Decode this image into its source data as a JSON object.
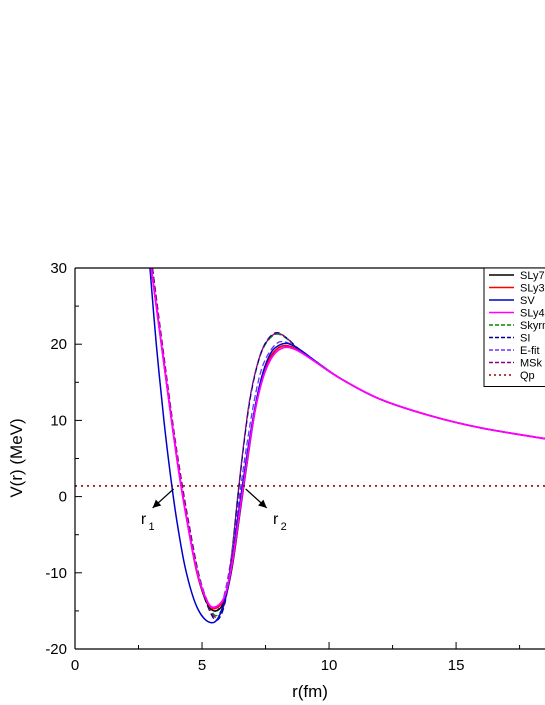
{
  "chart_data": {
    "type": "line",
    "title": "",
    "xlabel": "r(fm)",
    "ylabel": "V(r) (MeV)",
    "xlim": [
      0,
      18.5
    ],
    "ylim": [
      -20,
      30
    ],
    "x_ticks": [
      0,
      5,
      10,
      15
    ],
    "y_ticks": [
      -20,
      -10,
      0,
      10,
      20,
      30
    ],
    "grid": false,
    "legend_position": "top-right",
    "qp_level": 1.4,
    "annotations": [
      {
        "text": "r",
        "sub": "1",
        "tip": [
          4.0,
          1.4
        ],
        "label_at": [
          2.7,
          -3.6
        ]
      },
      {
        "text": "r",
        "sub": "2",
        "tip": [
          6.6,
          1.4
        ],
        "label_at": [
          7.9,
          -3.6
        ]
      }
    ],
    "series": [
      {
        "name": "SLy7",
        "color": "#000000",
        "dash": "solid",
        "width": 1.5,
        "points": [
          [
            3.0,
            30
          ],
          [
            3.4,
            20
          ],
          [
            3.8,
            10
          ],
          [
            4.1,
            3
          ],
          [
            4.4,
            -3
          ],
          [
            4.8,
            -10
          ],
          [
            5.2,
            -14
          ],
          [
            5.55,
            -15
          ],
          [
            5.9,
            -13.5
          ],
          [
            6.2,
            -9
          ],
          [
            6.5,
            -2
          ],
          [
            6.8,
            5
          ],
          [
            7.1,
            11.5
          ],
          [
            7.4,
            15.8
          ],
          [
            7.7,
            18.3
          ],
          [
            8.0,
            19.5
          ],
          [
            8.35,
            19.8
          ],
          [
            8.8,
            19.2
          ],
          [
            9.5,
            17.6
          ],
          [
            10.5,
            15.4
          ],
          [
            12,
            12.8
          ],
          [
            14,
            10.6
          ],
          [
            16,
            9.0
          ],
          [
            18.5,
            7.6
          ]
        ]
      },
      {
        "name": "SLy3",
        "color": "#ff0000",
        "dash": "solid",
        "width": 1.5,
        "points": [
          [
            3.0,
            30
          ],
          [
            3.4,
            20
          ],
          [
            3.8,
            10
          ],
          [
            4.1,
            3
          ],
          [
            4.4,
            -3
          ],
          [
            4.8,
            -10
          ],
          [
            5.2,
            -13.8
          ],
          [
            5.5,
            -14.7
          ],
          [
            5.9,
            -13.2
          ],
          [
            6.2,
            -8.6
          ],
          [
            6.5,
            -1.6
          ],
          [
            6.8,
            5.4
          ],
          [
            7.1,
            11.8
          ],
          [
            7.4,
            16
          ],
          [
            7.7,
            18.4
          ],
          [
            8.0,
            19.5
          ],
          [
            8.35,
            19.8
          ],
          [
            8.8,
            19.2
          ],
          [
            9.5,
            17.6
          ],
          [
            10.5,
            15.4
          ],
          [
            12,
            12.8
          ],
          [
            14,
            10.6
          ],
          [
            16,
            9.0
          ],
          [
            18.5,
            7.6
          ]
        ]
      },
      {
        "name": "SV",
        "color": "#0000cc",
        "dash": "solid",
        "width": 1.5,
        "points": [
          [
            2.95,
            30
          ],
          [
            3.2,
            20
          ],
          [
            3.5,
            10
          ],
          [
            3.75,
            3
          ],
          [
            4.0,
            -3
          ],
          [
            4.35,
            -9.5
          ],
          [
            4.8,
            -14.5
          ],
          [
            5.3,
            -16.5
          ],
          [
            5.7,
            -15.5
          ],
          [
            6.1,
            -10.5
          ],
          [
            6.4,
            -3
          ],
          [
            6.75,
            5
          ],
          [
            7.1,
            12
          ],
          [
            7.4,
            16.3
          ],
          [
            7.7,
            18.8
          ],
          [
            8.0,
            19.8
          ],
          [
            8.35,
            20.1
          ],
          [
            8.8,
            19.4
          ],
          [
            9.5,
            17.7
          ],
          [
            10.5,
            15.4
          ],
          [
            12,
            12.8
          ],
          [
            14,
            10.6
          ],
          [
            16,
            9.0
          ],
          [
            18.5,
            7.6
          ]
        ]
      },
      {
        "name": "SLy4",
        "color": "#ff00ff",
        "dash": "solid",
        "width": 1.8,
        "points": [
          [
            3.0,
            30
          ],
          [
            3.4,
            20
          ],
          [
            3.8,
            10
          ],
          [
            4.1,
            3
          ],
          [
            4.4,
            -3
          ],
          [
            4.8,
            -9.8
          ],
          [
            5.2,
            -13.7
          ],
          [
            5.5,
            -14.5
          ],
          [
            5.9,
            -13
          ],
          [
            6.2,
            -8.5
          ],
          [
            6.5,
            -1.5
          ],
          [
            6.8,
            5.3
          ],
          [
            7.1,
            11.5
          ],
          [
            7.4,
            15.6
          ],
          [
            7.7,
            18
          ],
          [
            8.0,
            19.2
          ],
          [
            8.35,
            19.6
          ],
          [
            8.8,
            19.1
          ],
          [
            9.5,
            17.6
          ],
          [
            10.5,
            15.4
          ],
          [
            12,
            12.8
          ],
          [
            14,
            10.6
          ],
          [
            16,
            9.0
          ],
          [
            18.5,
            7.6
          ]
        ]
      },
      {
        "name": "Skyrme",
        "color": "#008800",
        "dash": "6,3",
        "width": 1.3,
        "points": [
          [
            3.05,
            30
          ],
          [
            3.5,
            18
          ],
          [
            3.9,
            8
          ],
          [
            4.2,
            1.5
          ],
          [
            4.5,
            -4
          ],
          [
            4.9,
            -10.5
          ],
          [
            5.3,
            -14.5
          ],
          [
            5.6,
            -15.6
          ],
          [
            5.9,
            -13.5
          ],
          [
            6.15,
            -8
          ],
          [
            6.4,
            0
          ],
          [
            6.65,
            7
          ],
          [
            6.9,
            13
          ],
          [
            7.2,
            17.5
          ],
          [
            7.5,
            20
          ],
          [
            7.9,
            21.3
          ],
          [
            8.3,
            20.8
          ],
          [
            8.8,
            19.3
          ],
          [
            9.5,
            17.6
          ],
          [
            10.5,
            15.4
          ],
          [
            12,
            12.8
          ],
          [
            14,
            10.6
          ],
          [
            16,
            9.0
          ],
          [
            18.5,
            7.6
          ]
        ]
      },
      {
        "name": "SI",
        "color": "#000088",
        "dash": "6,3",
        "width": 1.3,
        "points": [
          [
            3.05,
            30
          ],
          [
            3.5,
            18
          ],
          [
            3.9,
            8
          ],
          [
            4.2,
            1.5
          ],
          [
            4.5,
            -4
          ],
          [
            4.9,
            -11
          ],
          [
            5.3,
            -15
          ],
          [
            5.6,
            -16.2
          ],
          [
            5.9,
            -14
          ],
          [
            6.15,
            -8.5
          ],
          [
            6.4,
            -0.5
          ],
          [
            6.65,
            7
          ],
          [
            6.9,
            13
          ],
          [
            7.2,
            17.6
          ],
          [
            7.5,
            20.2
          ],
          [
            7.9,
            21.5
          ],
          [
            8.3,
            20.9
          ],
          [
            8.8,
            19.4
          ],
          [
            9.5,
            17.6
          ],
          [
            10.5,
            15.4
          ],
          [
            12,
            12.8
          ],
          [
            14,
            10.6
          ],
          [
            16,
            9.0
          ],
          [
            18.5,
            7.6
          ]
        ]
      },
      {
        "name": "E-fit",
        "color": "#6633ff",
        "dash": "6,3",
        "width": 1.3,
        "points": [
          [
            3.0,
            30
          ],
          [
            3.45,
            19
          ],
          [
            3.85,
            9
          ],
          [
            4.15,
            2
          ],
          [
            4.45,
            -3.5
          ],
          [
            4.85,
            -10
          ],
          [
            5.25,
            -14
          ],
          [
            5.55,
            -15
          ],
          [
            5.85,
            -13.2
          ],
          [
            6.15,
            -8
          ],
          [
            6.45,
            -0.5
          ],
          [
            6.75,
            6.5
          ],
          [
            7.05,
            12.5
          ],
          [
            7.35,
            16.8
          ],
          [
            7.7,
            19.2
          ],
          [
            8.05,
            20.3
          ],
          [
            8.45,
            20.1
          ],
          [
            8.9,
            19.2
          ],
          [
            9.5,
            17.6
          ],
          [
            10.5,
            15.4
          ],
          [
            12,
            12.8
          ],
          [
            14,
            10.6
          ],
          [
            16,
            9.0
          ],
          [
            18.5,
            7.6
          ]
        ]
      },
      {
        "name": "MSk",
        "color": "#880088",
        "dash": "6,3",
        "width": 1.3,
        "points": [
          [
            3.05,
            30
          ],
          [
            3.5,
            18.5
          ],
          [
            3.9,
            8.5
          ],
          [
            4.2,
            2
          ],
          [
            4.5,
            -3.8
          ],
          [
            4.9,
            -10.8
          ],
          [
            5.3,
            -14.8
          ],
          [
            5.6,
            -15.8
          ],
          [
            5.9,
            -13.8
          ],
          [
            6.15,
            -8.2
          ],
          [
            6.4,
            -0.2
          ],
          [
            6.65,
            7.2
          ],
          [
            6.9,
            13.2
          ],
          [
            7.2,
            17.6
          ],
          [
            7.5,
            20.1
          ],
          [
            7.9,
            21.4
          ],
          [
            8.3,
            20.9
          ],
          [
            8.8,
            19.3
          ],
          [
            9.5,
            17.6
          ],
          [
            10.5,
            15.4
          ],
          [
            12,
            12.8
          ],
          [
            14,
            10.6
          ],
          [
            16,
            9.0
          ],
          [
            18.5,
            7.6
          ]
        ]
      },
      {
        "name": "Qp",
        "color": "#990000",
        "dash": "2,4",
        "width": 1.6,
        "points": [
          [
            0,
            1.4
          ],
          [
            18.5,
            1.4
          ]
        ]
      }
    ]
  }
}
